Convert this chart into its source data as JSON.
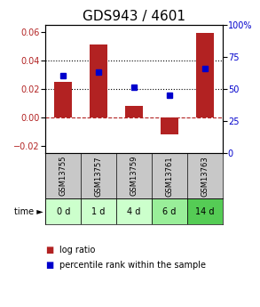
{
  "title": "GDS943 / 4601",
  "samples": [
    "GSM13755",
    "GSM13757",
    "GSM13759",
    "GSM13761",
    "GSM13763"
  ],
  "time_labels": [
    "0 d",
    "1 d",
    "4 d",
    "6 d",
    "14 d"
  ],
  "log_ratios": [
    0.025,
    0.051,
    0.008,
    -0.012,
    0.059
  ],
  "percentile_ranks": [
    60,
    63,
    51,
    45,
    66
  ],
  "bar_color": "#b22222",
  "dot_color": "#0000cc",
  "ylim_left": [
    -0.025,
    0.065
  ],
  "ylim_right": [
    0,
    100
  ],
  "yticks_left": [
    -0.02,
    0.0,
    0.02,
    0.04,
    0.06
  ],
  "yticks_right": [
    0,
    25,
    50,
    75,
    100
  ],
  "hline_values": [
    0.02,
    0.04
  ],
  "background_color": "#ffffff",
  "sample_bg": "#c8c8c8",
  "time_bg_colors": [
    "#ccffcc",
    "#ccffcc",
    "#ccffcc",
    "#99ee99",
    "#55cc55"
  ],
  "title_fontsize": 11,
  "tick_fontsize": 7,
  "legend_fontsize": 7,
  "bar_width": 0.5
}
